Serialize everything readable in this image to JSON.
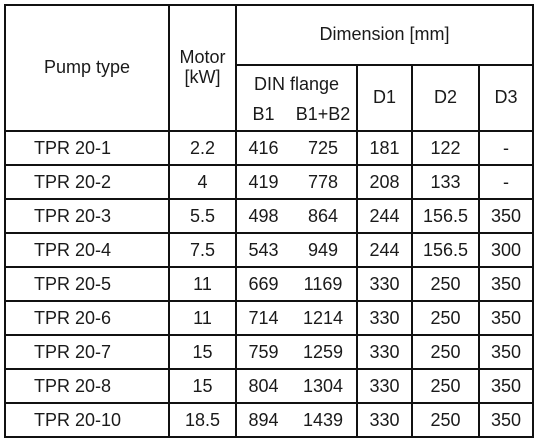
{
  "headers": {
    "pump_type": "Pump type",
    "motor_line1": "Motor",
    "motor_line2": "[kW]",
    "dimension": "Dimension [mm]",
    "din_flange": "DIN flange",
    "b1": "B1",
    "b1b2": "B1+B2",
    "d1": "D1",
    "d2": "D2",
    "d3": "D3"
  },
  "rows": [
    {
      "pump": "TPR 20-1",
      "motor": "2.2",
      "b1": "416",
      "b1b2": "725",
      "d1": "181",
      "d2": "122",
      "d3": "-"
    },
    {
      "pump": "TPR 20-2",
      "motor": "4",
      "b1": "419",
      "b1b2": "778",
      "d1": "208",
      "d2": "133",
      "d3": "-"
    },
    {
      "pump": "TPR 20-3",
      "motor": "5.5",
      "b1": "498",
      "b1b2": "864",
      "d1": "244",
      "d2": "156.5",
      "d3": "350"
    },
    {
      "pump": "TPR 20-4",
      "motor": "7.5",
      "b1": "543",
      "b1b2": "949",
      "d1": "244",
      "d2": "156.5",
      "d3": "300"
    },
    {
      "pump": "TPR 20-5",
      "motor": "11",
      "b1": "669",
      "b1b2": "1169",
      "d1": "330",
      "d2": "250",
      "d3": "350"
    },
    {
      "pump": "TPR 20-6",
      "motor": "11",
      "b1": "714",
      "b1b2": "1214",
      "d1": "330",
      "d2": "250",
      "d3": "350"
    },
    {
      "pump": "TPR 20-7",
      "motor": "15",
      "b1": "759",
      "b1b2": "1259",
      "d1": "330",
      "d2": "250",
      "d3": "350"
    },
    {
      "pump": "TPR 20-8",
      "motor": "15",
      "b1": "804",
      "b1b2": "1304",
      "d1": "330",
      "d2": "250",
      "d3": "350"
    },
    {
      "pump": "TPR 20-10",
      "motor": "18.5",
      "b1": "894",
      "b1b2": "1439",
      "d1": "330",
      "d2": "250",
      "d3": "350"
    }
  ]
}
